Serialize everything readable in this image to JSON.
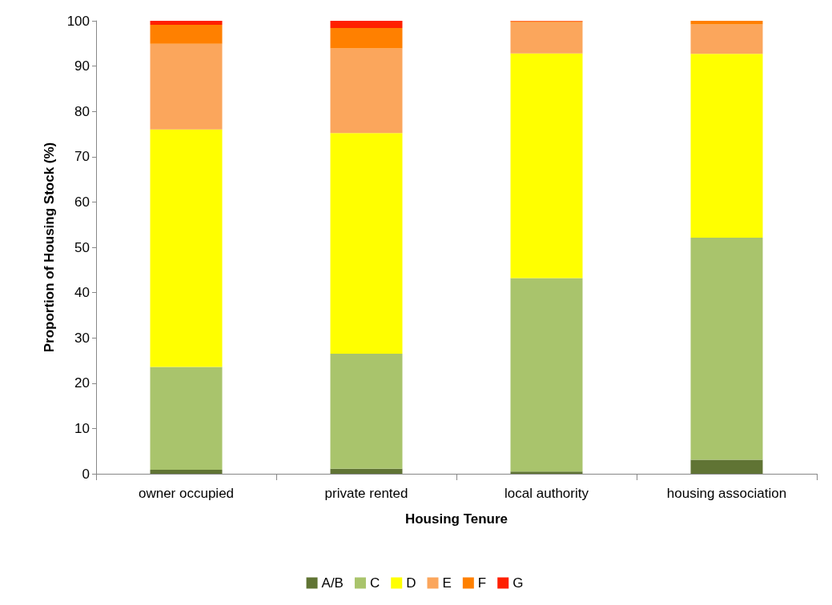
{
  "chart_data": {
    "type": "bar",
    "stacked": true,
    "xlabel": "Housing Tenure",
    "ylabel": "Proportion of Housing Stock (%)",
    "categories": [
      "owner occupied",
      "private rented",
      "local authority",
      "housing association"
    ],
    "series": [
      {
        "name": "A/B",
        "color": "#607434",
        "values": [
          0.9,
          1.1,
          0.5,
          3.1
        ]
      },
      {
        "name": "C",
        "color": "#a9c46c",
        "values": [
          22.7,
          25.4,
          42.7,
          49.0
        ]
      },
      {
        "name": "D",
        "color": "#ffff00",
        "values": [
          52.4,
          48.7,
          49.6,
          40.6
        ]
      },
      {
        "name": "E",
        "color": "#fba65c",
        "values": [
          18.9,
          18.7,
          6.9,
          6.5
        ]
      },
      {
        "name": "F",
        "color": "#ff8000",
        "values": [
          4.2,
          4.5,
          0.2,
          0.8
        ]
      },
      {
        "name": "G",
        "color": "#ff2000",
        "values": [
          0.9,
          1.6,
          0.1,
          0
        ]
      }
    ],
    "ylim": [
      0,
      100
    ],
    "yticks": [
      0,
      10,
      20,
      30,
      40,
      50,
      60,
      70,
      80,
      90,
      100
    ],
    "grid": false,
    "legend": "bottom"
  }
}
